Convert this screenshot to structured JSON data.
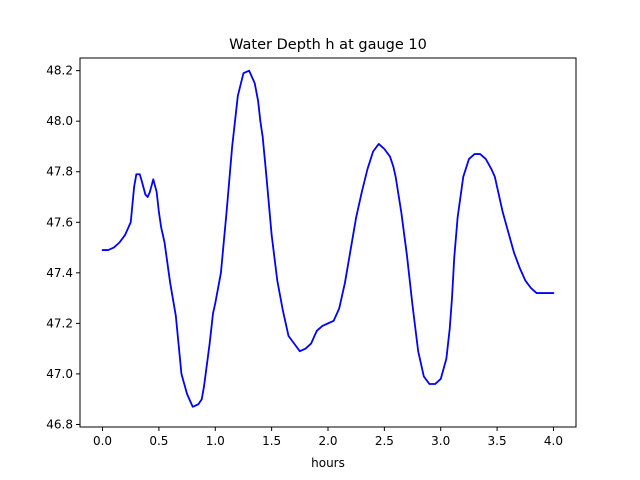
{
  "chart_data": {
    "type": "line",
    "title": "Water Depth h at gauge 10",
    "xlabel": "hours",
    "ylabel": "",
    "xlim": [
      -0.2,
      4.2
    ],
    "ylim": [
      46.79,
      48.25
    ],
    "xticks": [
      0.0,
      0.5,
      1.0,
      1.5,
      2.0,
      2.5,
      3.0,
      3.5,
      4.0
    ],
    "xtick_labels": [
      "0.0",
      "0.5",
      "1.0",
      "1.5",
      "2.0",
      "2.5",
      "3.0",
      "3.5",
      "4.0"
    ],
    "yticks": [
      46.8,
      47.0,
      47.2,
      47.4,
      47.6,
      47.8,
      48.0,
      48.2
    ],
    "ytick_labels": [
      "46.8",
      "47.0",
      "47.2",
      "47.4",
      "47.6",
      "47.8",
      "48.0",
      "48.2"
    ],
    "grid": false,
    "series": [
      {
        "color": "#0000ff",
        "x": [
          0.0,
          0.05,
          0.1,
          0.15,
          0.2,
          0.25,
          0.28,
          0.3,
          0.33,
          0.35,
          0.38,
          0.4,
          0.42,
          0.45,
          0.48,
          0.5,
          0.52,
          0.55,
          0.6,
          0.65,
          0.7,
          0.75,
          0.8,
          0.85,
          0.88,
          0.9,
          0.95,
          0.98,
          1.0,
          1.05,
          1.1,
          1.15,
          1.2,
          1.25,
          1.3,
          1.35,
          1.38,
          1.4,
          1.42,
          1.45,
          1.5,
          1.55,
          1.6,
          1.65,
          1.7,
          1.75,
          1.8,
          1.85,
          1.88,
          1.9,
          1.95,
          2.0,
          2.05,
          2.1,
          2.15,
          2.2,
          2.25,
          2.3,
          2.35,
          2.4,
          2.45,
          2.5,
          2.55,
          2.58,
          2.6,
          2.65,
          2.7,
          2.75,
          2.8,
          2.85,
          2.9,
          2.95,
          3.0,
          3.05,
          3.08,
          3.1,
          3.12,
          3.15,
          3.2,
          3.25,
          3.3,
          3.35,
          3.4,
          3.45,
          3.48,
          3.5,
          3.52,
          3.55,
          3.6,
          3.65,
          3.7,
          3.75,
          3.8,
          3.85,
          3.9,
          3.95,
          4.0
        ],
        "y": [
          47.49,
          47.49,
          47.5,
          47.52,
          47.55,
          47.6,
          47.74,
          47.79,
          47.79,
          47.76,
          47.71,
          47.7,
          47.72,
          47.77,
          47.72,
          47.64,
          47.58,
          47.52,
          47.36,
          47.23,
          47.0,
          46.92,
          46.87,
          46.88,
          46.9,
          46.95,
          47.12,
          47.24,
          47.28,
          47.4,
          47.64,
          47.9,
          48.1,
          48.19,
          48.2,
          48.15,
          48.08,
          48.0,
          47.94,
          47.8,
          47.55,
          47.37,
          47.25,
          47.15,
          47.12,
          47.09,
          47.1,
          47.12,
          47.15,
          47.17,
          47.19,
          47.2,
          47.21,
          47.26,
          47.36,
          47.49,
          47.62,
          47.72,
          47.81,
          47.88,
          47.91,
          47.89,
          47.86,
          47.82,
          47.78,
          47.64,
          47.47,
          47.27,
          47.09,
          46.99,
          46.96,
          46.96,
          46.98,
          47.06,
          47.18,
          47.3,
          47.46,
          47.62,
          47.78,
          47.85,
          47.87,
          47.87,
          47.85,
          47.81,
          47.78,
          47.74,
          47.7,
          47.64,
          47.56,
          47.48,
          47.42,
          47.37,
          47.34,
          47.32,
          47.32,
          47.32,
          47.32
        ]
      }
    ]
  }
}
